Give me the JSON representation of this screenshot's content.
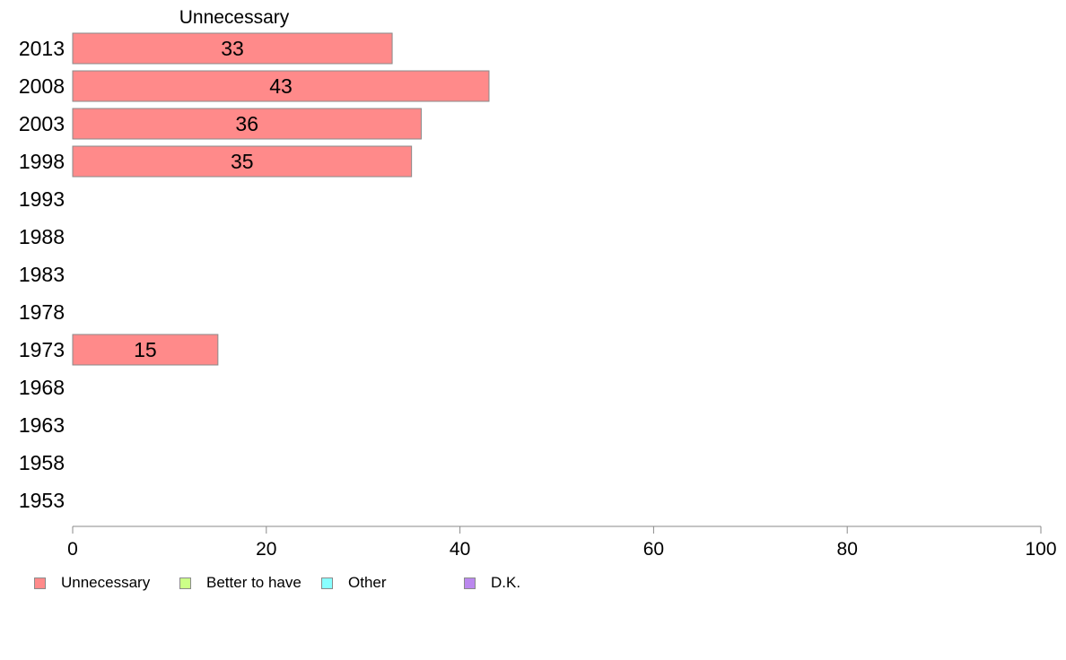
{
  "chart_data": {
    "type": "bar",
    "orientation": "horizontal",
    "stacked": true,
    "categories": [
      "2013",
      "2008",
      "2003",
      "1998",
      "1993",
      "1988",
      "1983",
      "1978",
      "1973",
      "1968",
      "1963",
      "1958",
      "1953"
    ],
    "series": [
      {
        "name": "Unnecessary",
        "color": "#ff8a8a",
        "values": [
          33,
          43,
          36,
          35,
          null,
          null,
          null,
          null,
          15,
          null,
          null,
          null,
          null
        ],
        "value_labels": [
          "33",
          "43",
          "36",
          "35",
          "",
          "",
          "",
          "",
          "15",
          "",
          "",
          "",
          ""
        ]
      }
    ],
    "column_header": "Unnecessary",
    "xlim": [
      0,
      100
    ],
    "xticks": [
      0,
      20,
      40,
      60,
      80,
      100
    ],
    "xtick_labels": [
      "0",
      "20",
      "40",
      "60",
      "80",
      "100"
    ],
    "grid": false,
    "legend_position": "bottom-left"
  },
  "legend": {
    "items": [
      {
        "label": "Unnecessary",
        "color": "#ff8a8a"
      },
      {
        "label": "Better to have",
        "color": "#ccff88"
      },
      {
        "label": "Other",
        "color": "#88ffff"
      },
      {
        "label": "D.K.",
        "color": "#bb88ee"
      }
    ]
  }
}
